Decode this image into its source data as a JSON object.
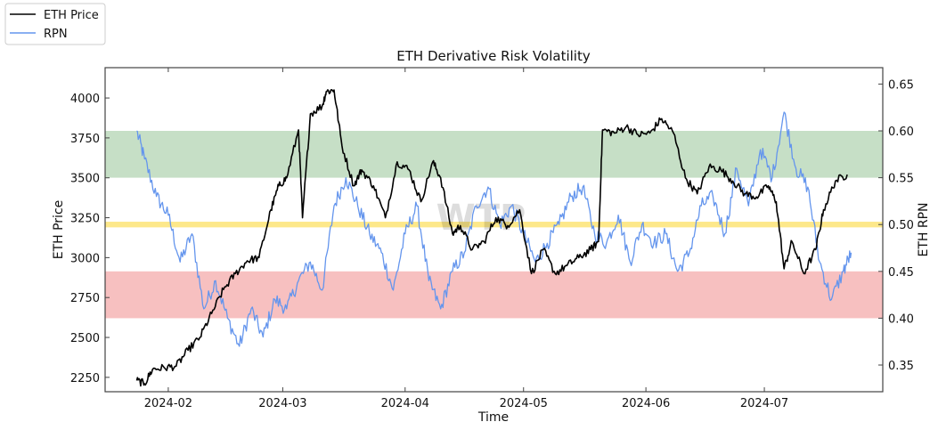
{
  "chart_data": {
    "type": "line",
    "title": "ETH Derivative Risk Volatility",
    "xlabel": "Time",
    "ylabel_left": "ETH Price",
    "ylabel_right": "ETH RPN",
    "watermark": "WTP",
    "x_range": [
      "2024-01-16",
      "2024-07-31"
    ],
    "ylim_left": [
      2160,
      4190
    ],
    "ylim_right": [
      0.3215,
      0.6675
    ],
    "x_ticks": [
      "2024-02-01",
      "2024-03-01",
      "2024-04-01",
      "2024-05-01",
      "2024-06-01",
      "2024-07-01"
    ],
    "x_tick_labels": [
      "2024-02",
      "2024-03",
      "2024-04",
      "2024-05",
      "2024-06",
      "2024-07"
    ],
    "y_ticks_left": [
      2250,
      2500,
      2750,
      3000,
      3250,
      3500,
      3750,
      4000
    ],
    "y_ticks_right": [
      "0.35",
      "0.40",
      "0.45",
      "0.50",
      "0.55",
      "0.60",
      "0.65"
    ],
    "grid": false,
    "legend": {
      "placement": "top-left",
      "entries": [
        {
          "label": "ETH Price",
          "color": "#000000"
        },
        {
          "label": "RPN",
          "color": "#6495ed"
        }
      ]
    },
    "bands": [
      {
        "name": "high-risk-zone",
        "axis": "right",
        "from": 0.55,
        "to": 0.6,
        "color": "#c6dfc6"
      },
      {
        "name": "neutral-line",
        "axis": "right",
        "from": 0.497,
        "to": 0.503,
        "color": "#fde88a"
      },
      {
        "name": "low-risk-zone",
        "axis": "right",
        "from": 0.4,
        "to": 0.45,
        "color": "#f7c0c0"
      }
    ],
    "series": [
      {
        "name": "ETH Price",
        "axis": "left",
        "color": "#000000",
        "x": [
          "2024-01-24",
          "2024-01-26",
          "2024-01-28",
          "2024-01-31",
          "2024-02-03",
          "2024-02-06",
          "2024-02-09",
          "2024-02-12",
          "2024-02-15",
          "2024-02-18",
          "2024-02-21",
          "2024-02-24",
          "2024-02-27",
          "2024-02-29",
          "2024-03-02",
          "2024-03-05",
          "2024-03-06",
          "2024-03-08",
          "2024-03-11",
          "2024-03-12",
          "2024-03-14",
          "2024-03-16",
          "2024-03-19",
          "2024-03-21",
          "2024-03-24",
          "2024-03-27",
          "2024-03-30",
          "2024-04-02",
          "2024-04-05",
          "2024-04-08",
          "2024-04-10",
          "2024-04-13",
          "2024-04-15",
          "2024-04-18",
          "2024-04-21",
          "2024-04-24",
          "2024-04-27",
          "2024-04-30",
          "2024-05-03",
          "2024-05-06",
          "2024-05-09",
          "2024-05-12",
          "2024-05-15",
          "2024-05-18",
          "2024-05-20",
          "2024-05-21",
          "2024-05-24",
          "2024-05-27",
          "2024-05-30",
          "2024-06-02",
          "2024-06-05",
          "2024-06-08",
          "2024-06-11",
          "2024-06-14",
          "2024-06-17",
          "2024-06-20",
          "2024-06-23",
          "2024-06-26",
          "2024-06-29",
          "2024-07-02",
          "2024-07-04",
          "2024-07-06",
          "2024-07-08",
          "2024-07-11",
          "2024-07-14",
          "2024-07-16",
          "2024-07-19",
          "2024-07-22"
        ],
        "values": [
          2230,
          2210,
          2300,
          2310,
          2320,
          2420,
          2500,
          2650,
          2800,
          2900,
          2980,
          3000,
          3300,
          3450,
          3500,
          3800,
          3250,
          3900,
          3950,
          4040,
          4050,
          3700,
          3450,
          3550,
          3450,
          3250,
          3600,
          3550,
          3350,
          3600,
          3500,
          3150,
          3200,
          3050,
          3100,
          3250,
          3200,
          3300,
          2900,
          3050,
          2900,
          2950,
          3000,
          3050,
          3100,
          3800,
          3780,
          3820,
          3770,
          3780,
          3870,
          3780,
          3500,
          3400,
          3570,
          3550,
          3480,
          3400,
          3380,
          3450,
          3350,
          2930,
          3100,
          2900,
          3050,
          3300,
          3480,
          3520
        ]
      },
      {
        "name": "RPN",
        "axis": "right",
        "color": "#6495ed",
        "x": [
          "2024-01-24",
          "2024-01-26",
          "2024-01-29",
          "2024-02-01",
          "2024-02-04",
          "2024-02-07",
          "2024-02-10",
          "2024-02-13",
          "2024-02-16",
          "2024-02-19",
          "2024-02-22",
          "2024-02-25",
          "2024-02-28",
          "2024-03-02",
          "2024-03-05",
          "2024-03-08",
          "2024-03-11",
          "2024-03-14",
          "2024-03-17",
          "2024-03-20",
          "2024-03-23",
          "2024-03-26",
          "2024-03-29",
          "2024-04-01",
          "2024-04-04",
          "2024-04-07",
          "2024-04-10",
          "2024-04-13",
          "2024-04-16",
          "2024-04-19",
          "2024-04-22",
          "2024-04-25",
          "2024-04-28",
          "2024-05-01",
          "2024-05-04",
          "2024-05-07",
          "2024-05-10",
          "2024-05-13",
          "2024-05-16",
          "2024-05-19",
          "2024-05-22",
          "2024-05-25",
          "2024-05-28",
          "2024-05-31",
          "2024-06-03",
          "2024-06-06",
          "2024-06-09",
          "2024-06-12",
          "2024-06-15",
          "2024-06-18",
          "2024-06-21",
          "2024-06-24",
          "2024-06-27",
          "2024-06-30",
          "2024-07-03",
          "2024-07-06",
          "2024-07-09",
          "2024-07-12",
          "2024-07-15",
          "2024-07-18",
          "2024-07-21",
          "2024-07-23"
        ],
        "values": [
          0.6,
          0.57,
          0.53,
          0.51,
          0.46,
          0.49,
          0.41,
          0.44,
          0.4,
          0.37,
          0.41,
          0.38,
          0.42,
          0.41,
          0.44,
          0.46,
          0.43,
          0.52,
          0.55,
          0.52,
          0.49,
          0.47,
          0.43,
          0.49,
          0.52,
          0.44,
          0.41,
          0.45,
          0.47,
          0.52,
          0.54,
          0.5,
          0.52,
          0.49,
          0.46,
          0.48,
          0.5,
          0.53,
          0.54,
          0.49,
          0.48,
          0.51,
          0.46,
          0.5,
          0.48,
          0.49,
          0.45,
          0.47,
          0.52,
          0.53,
          0.49,
          0.56,
          0.52,
          0.58,
          0.55,
          0.62,
          0.56,
          0.54,
          0.46,
          0.42,
          0.45,
          0.47
        ]
      }
    ]
  }
}
